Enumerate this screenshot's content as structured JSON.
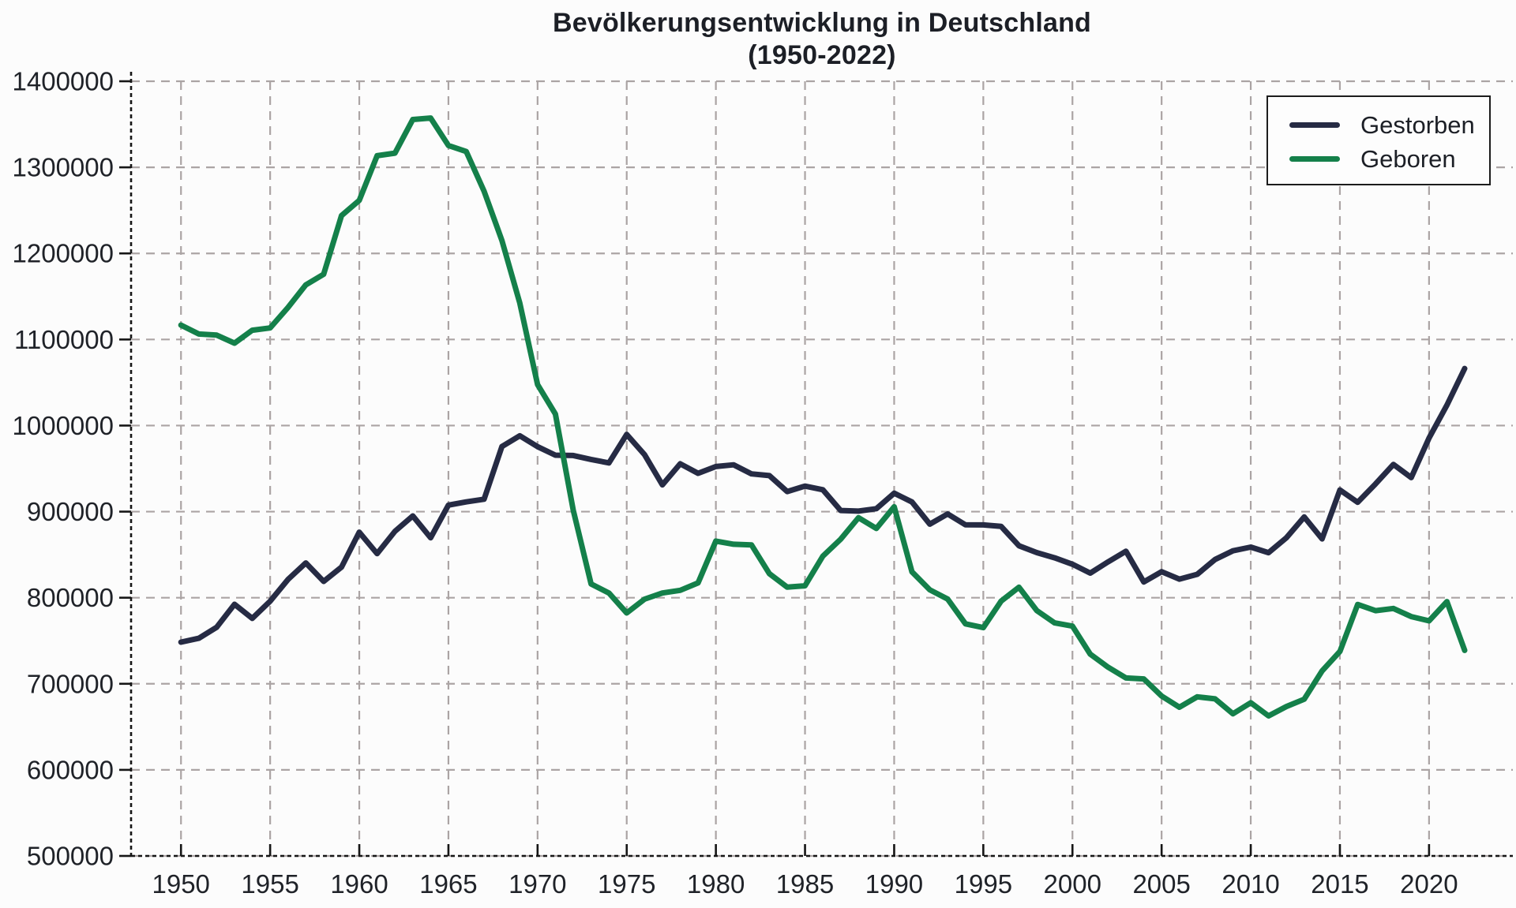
{
  "chart_data": {
    "type": "line",
    "title": "Bevölkerungsentwicklung in Deutschland",
    "subtitle": "(1950-2022)",
    "xlabel": "",
    "ylabel": "",
    "x": [
      1950,
      1951,
      1952,
      1953,
      1954,
      1955,
      1956,
      1957,
      1958,
      1959,
      1960,
      1961,
      1962,
      1963,
      1964,
      1965,
      1966,
      1967,
      1968,
      1969,
      1970,
      1971,
      1972,
      1973,
      1974,
      1975,
      1976,
      1977,
      1978,
      1979,
      1980,
      1981,
      1982,
      1983,
      1984,
      1985,
      1986,
      1987,
      1988,
      1989,
      1990,
      1991,
      1992,
      1993,
      1994,
      1995,
      1996,
      1997,
      1998,
      1999,
      2000,
      2001,
      2002,
      2003,
      2004,
      2005,
      2006,
      2007,
      2008,
      2009,
      2010,
      2011,
      2012,
      2013,
      2014,
      2015,
      2016,
      2017,
      2018,
      2019,
      2020,
      2021,
      2022
    ],
    "series": [
      {
        "name": "Gestorben",
        "color": "#262b44",
        "values": [
          748329,
          752823,
          765723,
          792334,
          775956,
          795938,
          821142,
          840348,
          818986,
          835517,
          876100,
          851201,
          877158,
          894988,
          869624,
          907523,
          911289,
          914417,
          975664,
          988092,
          975505,
          965623,
          965254,
          960613,
          956573,
          989649,
          966244,
          931155,
          955550,
          944474,
          952371,
          954434,
          943832,
          941845,
          923291,
          929649,
          925432,
          901291,
          900627,
          903441,
          921445,
          911245,
          885443,
          897270,
          884661,
          884588,
          882843,
          860389,
          852382,
          846330,
          838797,
          828541,
          841686,
          853946,
          818271,
          830227,
          821627,
          827155,
          844439,
          854544,
          858768,
          852328,
          869582,
          893825,
          868356,
          925200,
          910902,
          932263,
          954874,
          939520,
          985572,
          1023687,
          1066341
        ]
      },
      {
        "name": "Geboren",
        "color": "#14804a",
        "values": [
          1116701,
          1106380,
          1105085,
          1095698,
          1110790,
          1113408,
          1137169,
          1163491,
          1175870,
          1243922,
          1261614,
          1313505,
          1316534,
          1355595,
          1357304,
          1325386,
          1318303,
          1272276,
          1214968,
          1142366,
          1047737,
          1013396,
          901657,
          815969,
          805500,
          782310,
          798334,
          805496,
          808619,
          817217,
          865789,
          862100,
          861275,
          827933,
          812292,
          813803,
          848232,
          867969,
          892993,
          880459,
          905675,
          830019,
          809114,
          798447,
          769603,
          765221,
          796013,
          812173,
          785034,
          770744,
          766999,
          734475,
          719250,
          706721,
          705622,
          685795,
          672724,
          684862,
          682514,
          665126,
          677947,
          662685,
          673544,
          682069,
          714927,
          737575,
          792141,
          784901,
          787523,
          778090,
          773144,
          795492,
          738819
        ]
      }
    ],
    "axes": {
      "xlim": [
        1947.2,
        2024.7
      ],
      "ylim": [
        500000,
        1400000
      ],
      "x_ticks": [
        1950,
        1955,
        1960,
        1965,
        1970,
        1975,
        1980,
        1985,
        1990,
        1995,
        2000,
        2005,
        2010,
        2015,
        2020
      ],
      "x_tick_labels": [
        "1950",
        "1955",
        "1960",
        "1965",
        "1970",
        "1975",
        "1980",
        "1985",
        "1990",
        "1995",
        "2000",
        "2005",
        "2010",
        "2015",
        "2020"
      ],
      "y_ticks": [
        500000,
        600000,
        700000,
        800000,
        900000,
        1000000,
        1100000,
        1200000,
        1300000,
        1400000
      ],
      "y_tick_labels": [
        "500000",
        "600000",
        "700000",
        "800000",
        "900000",
        "1000000",
        "1100000",
        "1200000",
        "1300000",
        "1400000"
      ],
      "grid": true,
      "legend_position": "top-right"
    },
    "colors": {
      "grid": "#aba4a4",
      "spine": "#161616",
      "tick_text": "#1f2228",
      "background": "#fcfcfc"
    }
  }
}
